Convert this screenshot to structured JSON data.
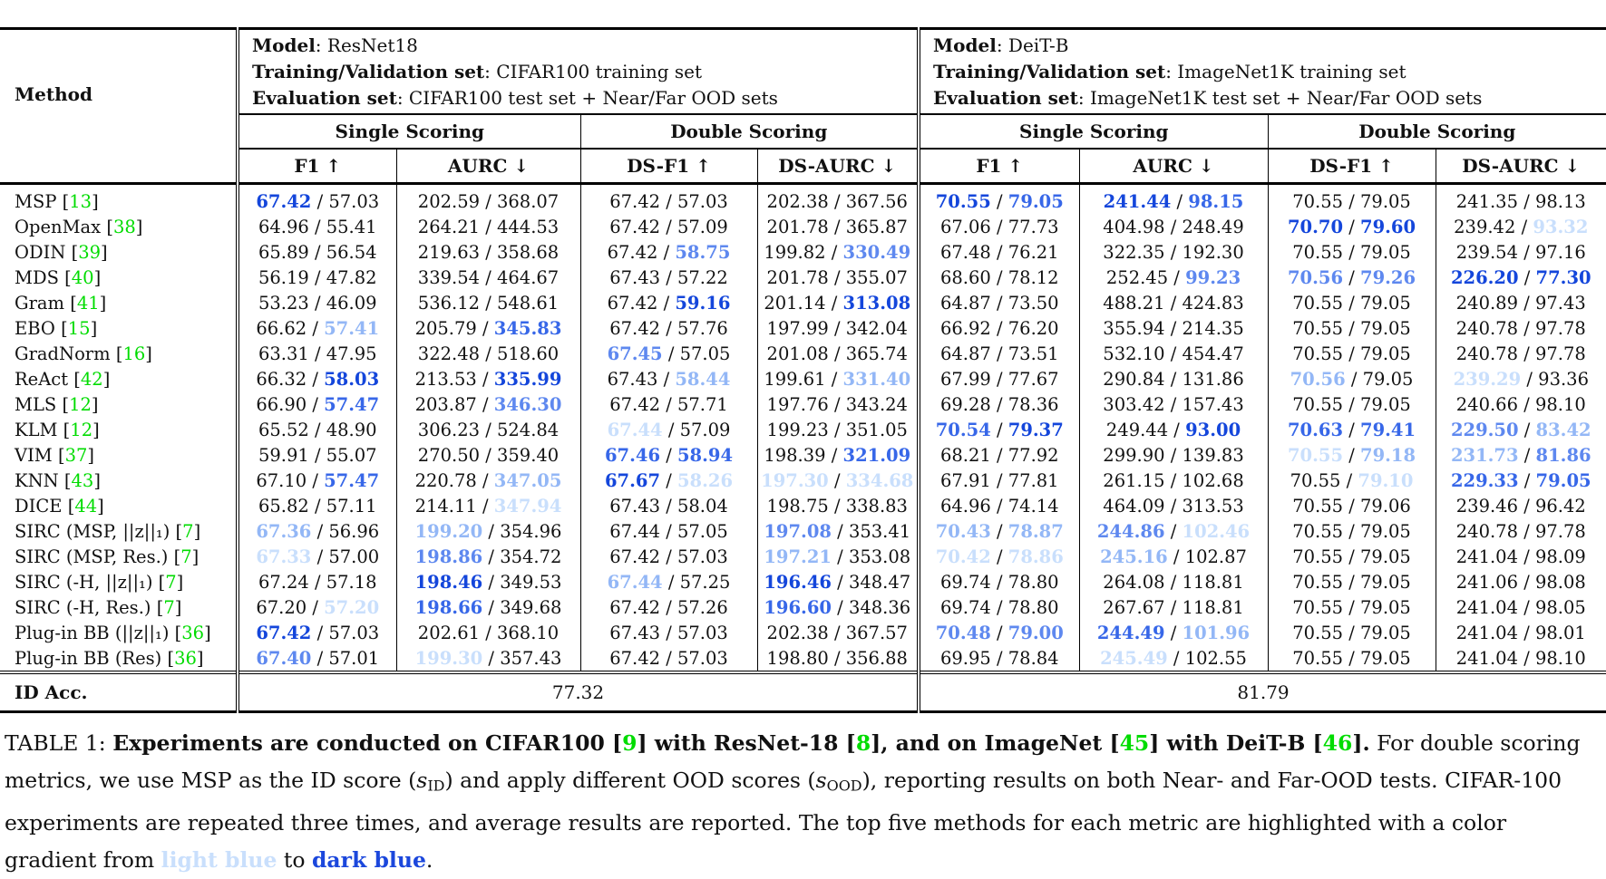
{
  "colors": {
    "cite_green": "#00dc00",
    "rank_gradient": [
      "#1446db",
      "#3767e8",
      "#5e88ef",
      "#93b7f6",
      "#c9dffc"
    ],
    "light_blue": "#c9dffc",
    "dark_blue": "#1b47dc",
    "rule_black": "#000000"
  },
  "table": {
    "method_header": "Method",
    "id_acc_label": "ID Acc.",
    "sections": [
      {
        "info": [
          {
            "label": "Model",
            "value": ": ResNet18"
          },
          {
            "label": "Training/Validation set",
            "value": ": CIFAR100 training set"
          },
          {
            "label": "Evaluation set",
            "value": ": CIFAR100 test set + Near/Far OOD sets"
          }
        ],
        "groups": [
          "Single Scoring",
          "Double Scoring"
        ],
        "metrics": [
          "F1 ↑",
          "AURC ↓",
          "DS-F1 ↑",
          "DS-AURC ↓"
        ],
        "id_acc": "77.32"
      },
      {
        "info": [
          {
            "label": "Model",
            "value": ": DeiT-B"
          },
          {
            "label": "Training/Validation set",
            "value": ": ImageNet1K training set"
          },
          {
            "label": "Evaluation set",
            "value": ": ImageNet1K test set + Near/Far OOD sets"
          }
        ],
        "groups": [
          "Single Scoring",
          "Double Scoring"
        ],
        "metrics": [
          "F1 ↑",
          "AURC ↓",
          "DS-F1 ↑",
          "DS-AURC ↓"
        ],
        "id_acc": "81.79"
      }
    ],
    "rows": [
      {
        "method": "MSP",
        "cite": "13",
        "cells": [
          [
            "67.42",
            1,
            "57.03",
            0
          ],
          [
            "202.59",
            0,
            "368.07",
            0
          ],
          [
            "67.42",
            0,
            "57.03",
            0
          ],
          [
            "202.38",
            0,
            "367.56",
            0
          ],
          [
            "70.55",
            1,
            "79.05",
            2
          ],
          [
            "241.44",
            1,
            "98.15",
            2
          ],
          [
            "70.55",
            0,
            "79.05",
            0
          ],
          [
            "241.35",
            0,
            "98.13",
            0
          ]
        ]
      },
      {
        "method": "OpenMax",
        "cite": "38",
        "cells": [
          [
            "64.96",
            0,
            "55.41",
            0
          ],
          [
            "264.21",
            0,
            "444.53",
            0
          ],
          [
            "67.42",
            0,
            "57.09",
            0
          ],
          [
            "201.78",
            0,
            "365.87",
            0
          ],
          [
            "67.06",
            0,
            "77.73",
            0
          ],
          [
            "404.98",
            0,
            "248.49",
            0
          ],
          [
            "70.70",
            1,
            "79.60",
            1
          ],
          [
            "239.42",
            0,
            "93.32",
            5
          ]
        ]
      },
      {
        "method": "ODIN",
        "cite": "39",
        "cells": [
          [
            "65.89",
            0,
            "56.54",
            0
          ],
          [
            "219.63",
            0,
            "358.68",
            0
          ],
          [
            "67.42",
            0,
            "58.75",
            3
          ],
          [
            "199.82",
            0,
            "330.49",
            3
          ],
          [
            "67.48",
            0,
            "76.21",
            0
          ],
          [
            "322.35",
            0,
            "192.30",
            0
          ],
          [
            "70.55",
            0,
            "79.05",
            0
          ],
          [
            "239.54",
            0,
            "97.16",
            0
          ]
        ]
      },
      {
        "method": "MDS",
        "cite": "40",
        "cells": [
          [
            "56.19",
            0,
            "47.82",
            0
          ],
          [
            "339.54",
            0,
            "464.67",
            0
          ],
          [
            "67.43",
            0,
            "57.22",
            0
          ],
          [
            "201.78",
            0,
            "355.07",
            0
          ],
          [
            "68.60",
            0,
            "78.12",
            0
          ],
          [
            "252.45",
            0,
            "99.23",
            3
          ],
          [
            "70.56",
            3,
            "79.26",
            3
          ],
          [
            "226.20",
            1,
            "77.30",
            1
          ]
        ]
      },
      {
        "method": "Gram",
        "cite": "41",
        "cells": [
          [
            "53.23",
            0,
            "46.09",
            0
          ],
          [
            "536.12",
            0,
            "548.61",
            0
          ],
          [
            "67.42",
            0,
            "59.16",
            1
          ],
          [
            "201.14",
            0,
            "313.08",
            1
          ],
          [
            "64.87",
            0,
            "73.50",
            0
          ],
          [
            "488.21",
            0,
            "424.83",
            0
          ],
          [
            "70.55",
            0,
            "79.05",
            0
          ],
          [
            "240.89",
            0,
            "97.43",
            0
          ]
        ]
      },
      {
        "method": "EBO",
        "cite": "15",
        "cells": [
          [
            "66.62",
            0,
            "57.41",
            4
          ],
          [
            "205.79",
            0,
            "345.83",
            2
          ],
          [
            "67.42",
            0,
            "57.76",
            0
          ],
          [
            "197.99",
            0,
            "342.04",
            0
          ],
          [
            "66.92",
            0,
            "76.20",
            0
          ],
          [
            "355.94",
            0,
            "214.35",
            0
          ],
          [
            "70.55",
            0,
            "79.05",
            0
          ],
          [
            "240.78",
            0,
            "97.78",
            0
          ]
        ]
      },
      {
        "method": "GradNorm",
        "cite": "16",
        "cells": [
          [
            "63.31",
            0,
            "47.95",
            0
          ],
          [
            "322.48",
            0,
            "518.60",
            0
          ],
          [
            "67.45",
            3,
            "57.05",
            0
          ],
          [
            "201.08",
            0,
            "365.74",
            0
          ],
          [
            "64.87",
            0,
            "73.51",
            0
          ],
          [
            "532.10",
            0,
            "454.47",
            0
          ],
          [
            "70.55",
            0,
            "79.05",
            0
          ],
          [
            "240.78",
            0,
            "97.78",
            0
          ]
        ]
      },
      {
        "method": "ReAct",
        "cite": "42",
        "cells": [
          [
            "66.32",
            0,
            "58.03",
            1
          ],
          [
            "213.53",
            0,
            "335.99",
            1
          ],
          [
            "67.43",
            0,
            "58.44",
            4
          ],
          [
            "199.61",
            0,
            "331.40",
            4
          ],
          [
            "67.99",
            0,
            "77.67",
            0
          ],
          [
            "290.84",
            0,
            "131.86",
            0
          ],
          [
            "70.56",
            4,
            "79.05",
            0
          ],
          [
            "239.29",
            5,
            "93.36",
            0
          ]
        ]
      },
      {
        "method": "MLS",
        "cite": "12",
        "cells": [
          [
            "66.90",
            0,
            "57.47",
            2
          ],
          [
            "203.87",
            0,
            "346.30",
            3
          ],
          [
            "67.42",
            0,
            "57.71",
            0
          ],
          [
            "197.76",
            0,
            "343.24",
            0
          ],
          [
            "69.28",
            0,
            "78.36",
            0
          ],
          [
            "303.42",
            0,
            "157.43",
            0
          ],
          [
            "70.55",
            0,
            "79.05",
            0
          ],
          [
            "240.66",
            0,
            "98.10",
            0
          ]
        ]
      },
      {
        "method": "KLM",
        "cite": "12",
        "cells": [
          [
            "65.52",
            0,
            "48.90",
            0
          ],
          [
            "306.23",
            0,
            "524.84",
            0
          ],
          [
            "67.44",
            5,
            "57.09",
            0
          ],
          [
            "199.23",
            0,
            "351.05",
            0
          ],
          [
            "70.54",
            2,
            "79.37",
            1
          ],
          [
            "249.44",
            0,
            "93.00",
            1
          ],
          [
            "70.63",
            2,
            "79.41",
            2
          ],
          [
            "229.50",
            3,
            "83.42",
            4
          ]
        ]
      },
      {
        "method": "VIM",
        "cite": "37",
        "cells": [
          [
            "59.91",
            0,
            "55.07",
            0
          ],
          [
            "270.50",
            0,
            "359.40",
            0
          ],
          [
            "67.46",
            2,
            "58.94",
            2
          ],
          [
            "198.39",
            0,
            "321.09",
            2
          ],
          [
            "68.21",
            0,
            "77.92",
            0
          ],
          [
            "299.90",
            0,
            "139.83",
            0
          ],
          [
            "70.55",
            5,
            "79.18",
            4
          ],
          [
            "231.73",
            4,
            "81.86",
            3
          ]
        ]
      },
      {
        "method": "KNN",
        "cite": "43",
        "cells": [
          [
            "67.10",
            0,
            "57.47",
            2
          ],
          [
            "220.78",
            0,
            "347.05",
            4
          ],
          [
            "67.67",
            1,
            "58.26",
            5
          ],
          [
            "197.30",
            5,
            "334.68",
            5
          ],
          [
            "67.91",
            0,
            "77.81",
            0
          ],
          [
            "261.15",
            0,
            "102.68",
            0
          ],
          [
            "70.55",
            0,
            "79.10",
            5
          ],
          [
            "229.33",
            2,
            "79.05",
            2
          ]
        ]
      },
      {
        "method": "DICE",
        "cite": "44",
        "cells": [
          [
            "65.82",
            0,
            "57.11",
            0
          ],
          [
            "214.11",
            0,
            "347.94",
            5
          ],
          [
            "67.43",
            0,
            "58.04",
            0
          ],
          [
            "198.75",
            0,
            "338.83",
            0
          ],
          [
            "64.96",
            0,
            "74.14",
            0
          ],
          [
            "464.09",
            0,
            "313.53",
            0
          ],
          [
            "70.55",
            0,
            "79.06",
            0
          ],
          [
            "239.46",
            0,
            "96.42",
            0
          ]
        ]
      },
      {
        "method": "SIRC (MSP, ||z||₁)",
        "cite": "7",
        "cells": [
          [
            "67.36",
            4,
            "56.96",
            0
          ],
          [
            "199.20",
            4,
            "354.96",
            0
          ],
          [
            "67.44",
            0,
            "57.05",
            0
          ],
          [
            "197.08",
            3,
            "353.41",
            0
          ],
          [
            "70.43",
            4,
            "78.87",
            4
          ],
          [
            "244.86",
            3,
            "102.46",
            5
          ],
          [
            "70.55",
            0,
            "79.05",
            0
          ],
          [
            "240.78",
            0,
            "97.78",
            0
          ]
        ]
      },
      {
        "method": "SIRC (MSP, Res.)",
        "cite": "7",
        "cells": [
          [
            "67.33",
            5,
            "57.00",
            0
          ],
          [
            "198.86",
            3,
            "354.72",
            0
          ],
          [
            "67.42",
            0,
            "57.03",
            0
          ],
          [
            "197.21",
            4,
            "353.08",
            0
          ],
          [
            "70.42",
            5,
            "78.86",
            5
          ],
          [
            "245.16",
            4,
            "102.87",
            0
          ],
          [
            "70.55",
            0,
            "79.05",
            0
          ],
          [
            "241.04",
            0,
            "98.09",
            0
          ]
        ]
      },
      {
        "method": "SIRC (-H, ||z||₁)",
        "cite": "7",
        "cells": [
          [
            "67.24",
            0,
            "57.18",
            0
          ],
          [
            "198.46",
            1,
            "349.53",
            0
          ],
          [
            "67.44",
            4,
            "57.25",
            0
          ],
          [
            "196.46",
            1,
            "348.47",
            0
          ],
          [
            "69.74",
            0,
            "78.80",
            0
          ],
          [
            "264.08",
            0,
            "118.81",
            0
          ],
          [
            "70.55",
            0,
            "79.05",
            0
          ],
          [
            "241.06",
            0,
            "98.08",
            0
          ]
        ]
      },
      {
        "method": "SIRC (-H, Res.)",
        "cite": "7",
        "cells": [
          [
            "67.20",
            0,
            "57.20",
            5
          ],
          [
            "198.66",
            2,
            "349.68",
            0
          ],
          [
            "67.42",
            0,
            "57.26",
            0
          ],
          [
            "196.60",
            2,
            "348.36",
            0
          ],
          [
            "69.74",
            0,
            "78.80",
            0
          ],
          [
            "267.67",
            0,
            "118.81",
            0
          ],
          [
            "70.55",
            0,
            "79.05",
            0
          ],
          [
            "241.04",
            0,
            "98.05",
            0
          ]
        ]
      },
      {
        "method": "Plug-in BB (||z||₁)",
        "cite": "36",
        "cells": [
          [
            "67.42",
            1,
            "57.03",
            0
          ],
          [
            "202.61",
            0,
            "368.10",
            0
          ],
          [
            "67.43",
            0,
            "57.03",
            0
          ],
          [
            "202.38",
            0,
            "367.57",
            0
          ],
          [
            "70.48",
            3,
            "79.00",
            3
          ],
          [
            "244.49",
            2,
            "101.96",
            4
          ],
          [
            "70.55",
            0,
            "79.05",
            0
          ],
          [
            "241.04",
            0,
            "98.01",
            0
          ]
        ]
      },
      {
        "method": "Plug-in BB (Res)",
        "cite": "36",
        "cells": [
          [
            "67.40",
            3,
            "57.01",
            0
          ],
          [
            "199.30",
            5,
            "357.43",
            0
          ],
          [
            "67.42",
            0,
            "57.03",
            0
          ],
          [
            "198.80",
            0,
            "356.88",
            0
          ],
          [
            "69.95",
            0,
            "78.84",
            0
          ],
          [
            "245.49",
            5,
            "102.55",
            0
          ],
          [
            "70.55",
            0,
            "79.05",
            0
          ],
          [
            "241.04",
            0,
            "98.10",
            0
          ]
        ]
      }
    ]
  },
  "caption": {
    "segments": [
      {
        "t": "TABLE 1: ",
        "s": "p"
      },
      {
        "t": "Experiments are conducted on CIFAR100 [",
        "s": "b"
      },
      {
        "t": "9",
        "s": "g"
      },
      {
        "t": "] with ResNet-18 [",
        "s": "b"
      },
      {
        "t": "8",
        "s": "g"
      },
      {
        "t": "], and on ImageNet [",
        "s": "b"
      },
      {
        "t": "45",
        "s": "g"
      },
      {
        "t": "] with DeiT-B [",
        "s": "b"
      },
      {
        "t": "46",
        "s": "g"
      },
      {
        "t": "].",
        "s": "b"
      },
      {
        "t": " For double scoring metrics, we use MSP as the ID score (",
        "s": "p"
      },
      {
        "t": "s",
        "s": "i"
      },
      {
        "t": "ID",
        "s": "sub"
      },
      {
        "t": ") and apply different OOD scores (",
        "s": "p"
      },
      {
        "t": "s",
        "s": "i"
      },
      {
        "t": "OOD",
        "s": "sub"
      },
      {
        "t": "), reporting results on both Near- and Far-OOD tests. CIFAR-100 experiments are repeated three times, and average results are reported. The top five methods for each metric are highlighted with a color gradient from ",
        "s": "p"
      },
      {
        "t": "light blue",
        "s": "lb"
      },
      {
        "t": " to ",
        "s": "p"
      },
      {
        "t": "dark blue",
        "s": "db"
      },
      {
        "t": ".",
        "s": "p"
      }
    ]
  }
}
